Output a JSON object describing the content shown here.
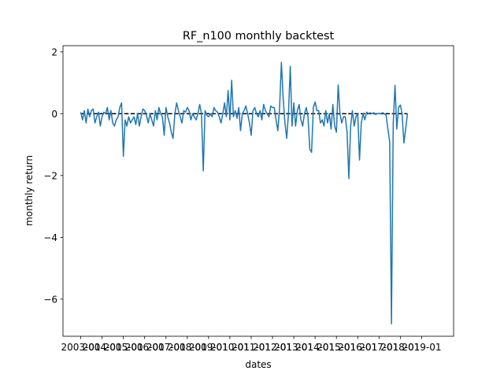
{
  "chart_data": {
    "type": "line",
    "title": "RF_n100 monthly backtest",
    "xlabel": "dates",
    "ylabel": "monthly return",
    "x_ticks": [
      "2003-01",
      "2004-01",
      "2005-01",
      "2006-01",
      "2007-01",
      "2008-01",
      "2009-01",
      "2010-01",
      "2011-01",
      "2012-01",
      "2013-01",
      "2014-01",
      "2015-01",
      "2016-01",
      "2017-01",
      "2018-01",
      "2019-01"
    ],
    "y_ticks": [
      "2",
      "0",
      "−2",
      "−4",
      "−6"
    ],
    "y_tick_values": [
      2,
      0,
      -2,
      -4,
      -6
    ],
    "xlim": [
      "2002-03",
      "2020-07"
    ],
    "ylim": [
      -7.2,
      2.2
    ],
    "grid": false,
    "legend": "none",
    "series": [
      {
        "color": "#1f77b4",
        "values": [
          0.05,
          -0.2,
          0.1,
          -0.3,
          0.15,
          -0.1,
          0.1,
          0.15,
          -0.3,
          -0.1,
          0.05,
          -0.4,
          -0.1,
          0.05,
          0.0,
          0.2,
          -0.2,
          0.1,
          -0.3,
          -0.4,
          -0.2,
          -0.1,
          0.2,
          0.35,
          -1.38,
          -0.2,
          -0.4,
          -0.1,
          -0.3,
          -0.2,
          -0.1,
          -0.35,
          0.0,
          -0.4,
          -0.1,
          0.15,
          0.1,
          -0.05,
          -0.3,
          0.0,
          -0.2,
          -0.4,
          0.1,
          -0.2,
          0.2,
          0.0,
          -0.1,
          -0.7,
          0.2,
          -0.1,
          -0.3,
          -0.6,
          -0.8,
          0.0,
          0.35,
          0.1,
          -0.1,
          -0.3,
          0.1,
          0.05,
          0.2,
          0.1,
          -0.2,
          0.0,
          -0.1,
          -0.2,
          0.0,
          0.3,
          0.0,
          -1.85,
          0.1,
          -0.05,
          -0.1,
          0.0,
          -0.1,
          0.2,
          0.1,
          0.05,
          -0.1,
          -0.3,
          0.0,
          0.35,
          -0.1,
          0.75,
          -0.2,
          1.08,
          -0.1,
          0.1,
          -0.15,
          0.2,
          -0.55,
          0.0,
          0.1,
          0.25,
          0.0,
          -0.3,
          -0.7,
          0.1,
          0.2,
          0.0,
          -0.1,
          0.1,
          -0.2,
          0.3,
          0.1,
          0.0,
          -0.1,
          0.25,
          0.2,
          0.2,
          -0.2,
          -0.55,
          0.2,
          1.66,
          0.5,
          -0.3,
          -0.8,
          0.0,
          1.53,
          -0.4,
          0.35,
          -0.4,
          0.1,
          0.3,
          -0.2,
          -0.4,
          0.0,
          0.2,
          -0.1,
          -1.15,
          -1.25,
          0.2,
          0.38,
          0.1,
          0.1,
          -0.3,
          -0.2,
          -0.4,
          0.1,
          -0.3,
          0.0,
          -0.5,
          0.3,
          -0.4,
          -0.6,
          0.93,
          0.0,
          -0.3,
          -0.1,
          -0.1,
          -0.6,
          -2.1,
          -0.4,
          0.1,
          -0.4,
          -0.1,
          0.0,
          -1.5,
          -0.3,
          0.0,
          -0.2,
          0.05,
          0.0,
          0.03,
          0.0,
          0.03,
          -0.02,
          0.0,
          0.01,
          0.0,
          0.03,
          0.0,
          -0.05,
          -0.5,
          -0.9,
          -6.8,
          -0.3,
          0.92,
          -0.5,
          0.2,
          0.28,
          0.0,
          -0.95,
          -0.5,
          0.0
        ]
      },
      {
        "color": "#000000",
        "style": "dashed",
        "values": [
          0
        ]
      }
    ]
  }
}
